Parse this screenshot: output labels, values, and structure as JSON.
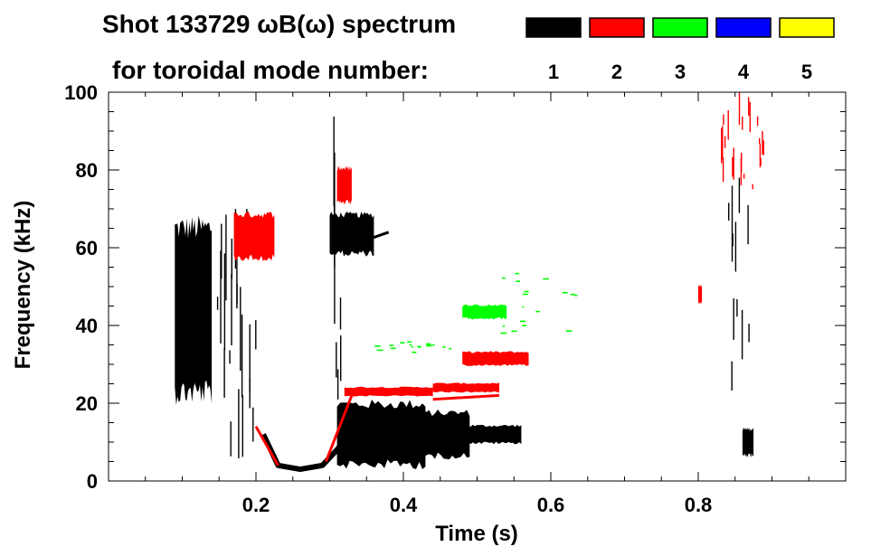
{
  "chart_data": {
    "type": "heatmap",
    "title_line1": "Shot 133729 ωB(ω) spectrum",
    "title_line2": "for toroidal mode number:",
    "xlabel": "Time (s)",
    "ylabel": "Frequency (kHz)",
    "xlim": [
      0.0,
      1.0
    ],
    "ylim": [
      0,
      100
    ],
    "x_ticks": [
      0.2,
      0.4,
      0.6,
      0.8
    ],
    "x_tick_labels": [
      "0.2",
      "0.4",
      "0.6",
      "0.8"
    ],
    "y_ticks": [
      0,
      20,
      40,
      60,
      80,
      100
    ],
    "y_tick_labels": [
      "0",
      "20",
      "40",
      "60",
      "80",
      "100"
    ],
    "legend": [
      {
        "mode": "1",
        "color": "#000000"
      },
      {
        "mode": "2",
        "color": "#ff0000"
      },
      {
        "mode": "3",
        "color": "#00ff00"
      },
      {
        "mode": "4",
        "color": "#0000ff"
      },
      {
        "mode": "5",
        "color": "#ffff00"
      }
    ],
    "features": [
      {
        "mode": 1,
        "kind": "blob",
        "t": [
          0.09,
          0.14
        ],
        "f": [
          25,
          63
        ],
        "description": "broadband early activity"
      },
      {
        "mode": 1,
        "kind": "streaks",
        "t": [
          0.14,
          0.2
        ],
        "f": [
          5,
          70
        ]
      },
      {
        "mode": 1,
        "kind": "streak",
        "t": [
          0.2,
          0.205
        ],
        "f": [
          70,
          80
        ]
      },
      {
        "mode": 1,
        "kind": "curve",
        "points": [
          [
            0.21,
            12
          ],
          [
            0.23,
            4
          ],
          [
            0.26,
            3
          ],
          [
            0.29,
            4
          ],
          [
            0.31,
            8
          ],
          [
            0.33,
            13
          ]
        ],
        "width": 6
      },
      {
        "mode": 1,
        "kind": "band",
        "t": [
          0.31,
          0.43
        ],
        "f": [
          5,
          19
        ]
      },
      {
        "mode": 1,
        "kind": "band",
        "t": [
          0.38,
          0.49
        ],
        "f": [
          7,
          17
        ]
      },
      {
        "mode": 1,
        "kind": "band",
        "t": [
          0.48,
          0.56
        ],
        "f": [
          10,
          14
        ]
      },
      {
        "mode": 1,
        "kind": "blob",
        "t": [
          0.3,
          0.36
        ],
        "f": [
          59,
          68
        ]
      },
      {
        "mode": 1,
        "kind": "line",
        "t": [
          0.35,
          0.38
        ],
        "f": [
          62,
          64
        ]
      },
      {
        "mode": 1,
        "kind": "streaks",
        "t": [
          0.305,
          0.32
        ],
        "f": [
          20,
          100
        ]
      },
      {
        "mode": 1,
        "kind": "streaks",
        "t": [
          0.84,
          0.87
        ],
        "f": [
          20,
          78
        ]
      },
      {
        "mode": 1,
        "kind": "blob",
        "t": [
          0.86,
          0.875
        ],
        "f": [
          7,
          13
        ]
      },
      {
        "mode": 2,
        "kind": "band",
        "t": [
          0.32,
          0.44
        ],
        "f": [
          22,
          24
        ]
      },
      {
        "mode": 2,
        "kind": "band",
        "t": [
          0.44,
          0.53
        ],
        "f": [
          23,
          25
        ]
      },
      {
        "mode": 2,
        "kind": "line",
        "t": [
          0.44,
          0.53
        ],
        "f": [
          21,
          22
        ]
      },
      {
        "mode": 2,
        "kind": "band",
        "t": [
          0.48,
          0.57
        ],
        "f": [
          30,
          33
        ]
      },
      {
        "mode": 2,
        "kind": "line",
        "t": [
          0.2,
          0.23
        ],
        "f": [
          14,
          4
        ]
      },
      {
        "mode": 2,
        "kind": "line",
        "t": [
          0.295,
          0.33
        ],
        "f": [
          5,
          22
        ]
      },
      {
        "mode": 2,
        "kind": "blob",
        "t": [
          0.17,
          0.225
        ],
        "f": [
          58,
          68
        ]
      },
      {
        "mode": 2,
        "kind": "blob",
        "t": [
          0.31,
          0.33
        ],
        "f": [
          72,
          80
        ]
      },
      {
        "mode": 2,
        "kind": "streaks",
        "t": [
          0.83,
          0.89
        ],
        "f": [
          75,
          100
        ]
      },
      {
        "mode": 2,
        "kind": "blob",
        "t": [
          0.8,
          0.805
        ],
        "f": [
          46,
          50
        ]
      },
      {
        "mode": 3,
        "kind": "band",
        "t": [
          0.48,
          0.54
        ],
        "f": [
          42,
          45
        ]
      },
      {
        "mode": 3,
        "kind": "dashes",
        "t": [
          0.36,
          0.47
        ],
        "f": [
          33,
          36
        ]
      },
      {
        "mode": 3,
        "kind": "dashes",
        "t": [
          0.5,
          0.64
        ],
        "f": [
          38,
          55
        ]
      }
    ]
  }
}
